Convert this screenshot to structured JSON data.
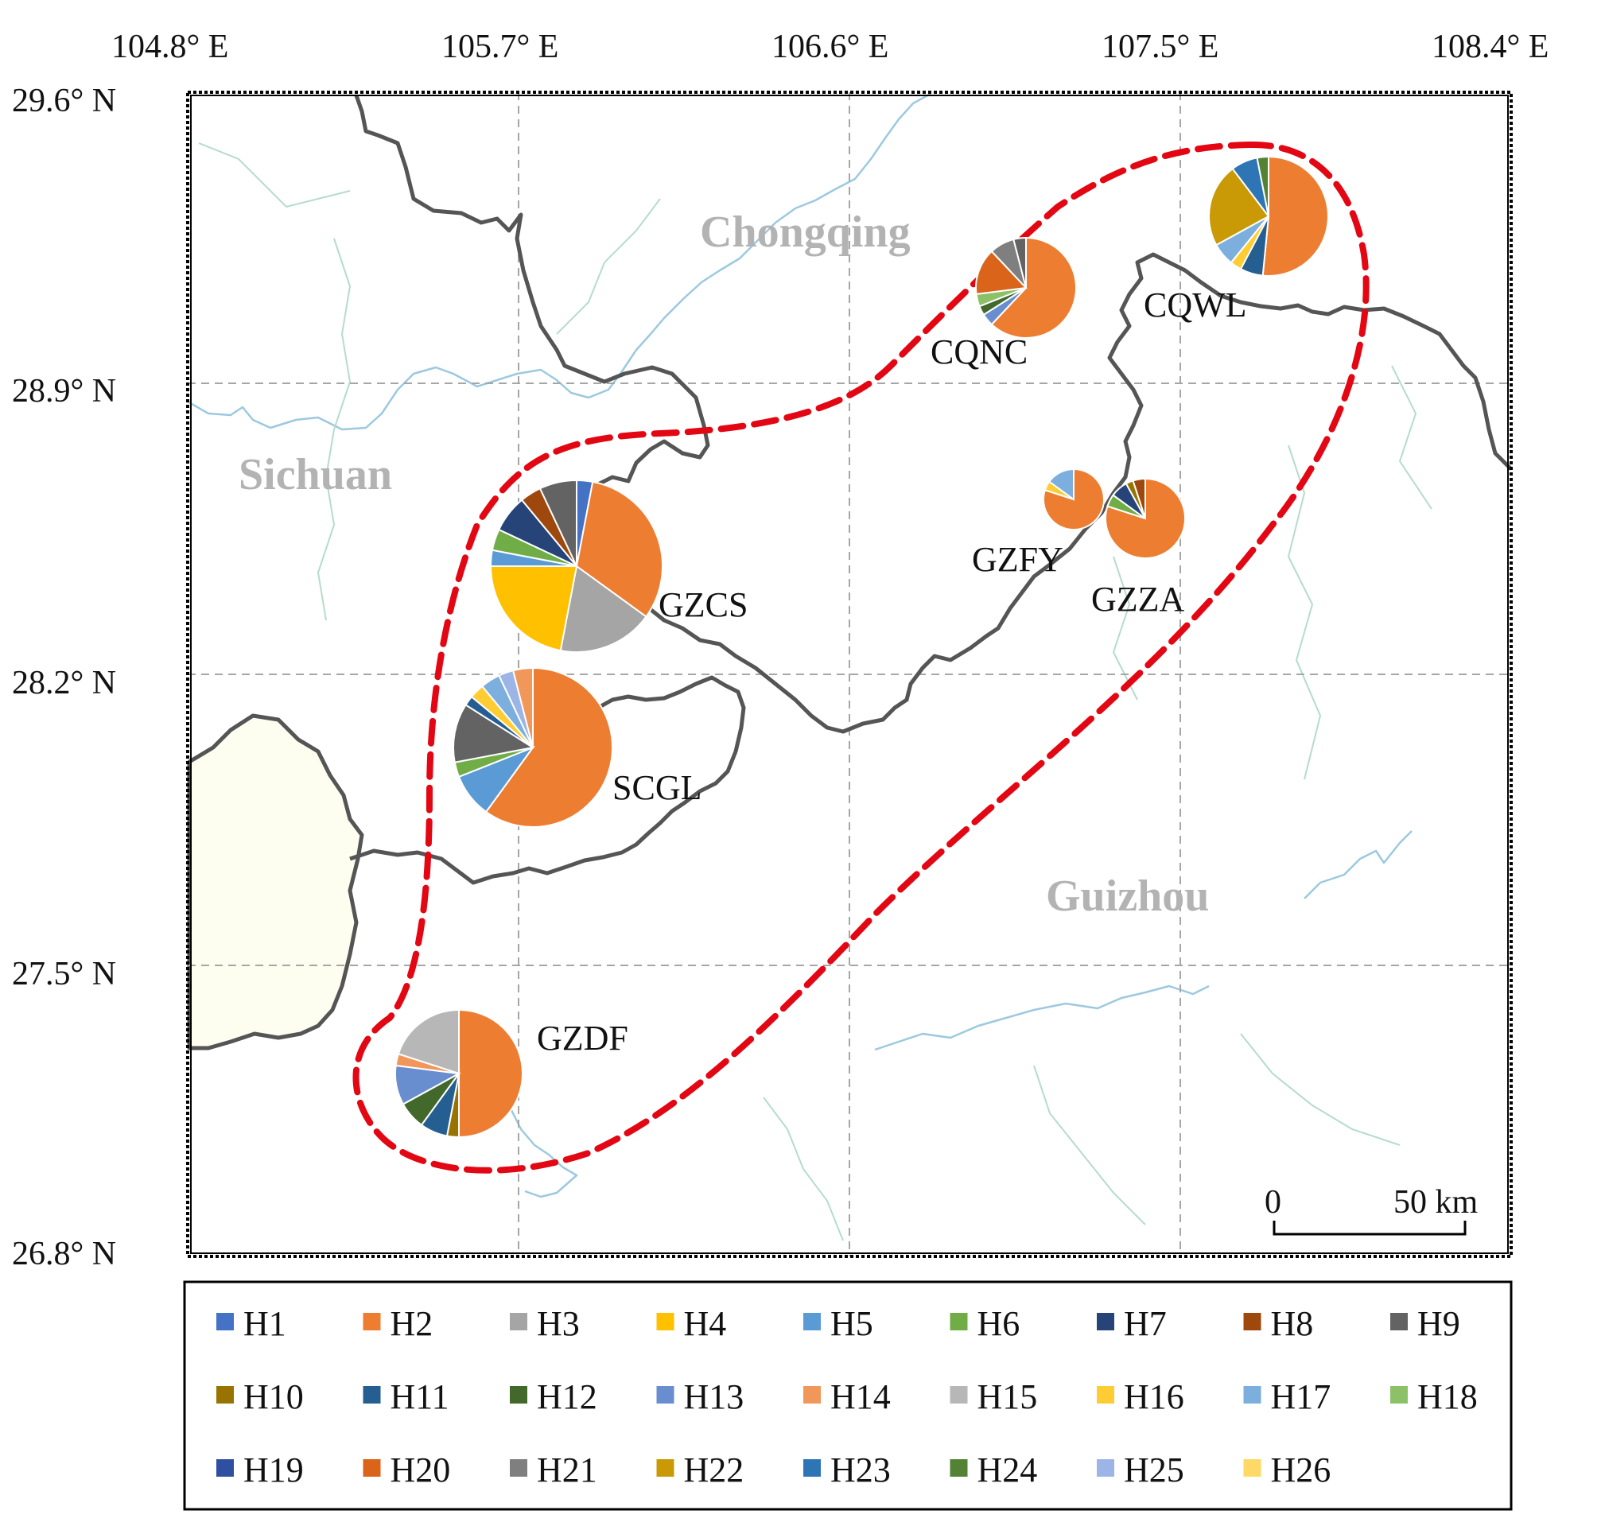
{
  "map": {
    "lon_ticks": [
      "104.8° E",
      "105.7° E",
      "106.6° E",
      "107.5° E",
      "108.4° E"
    ],
    "lat_ticks": [
      "29.6° N",
      "28.9° N",
      "28.2° N",
      "27.5° N",
      "26.8° N"
    ],
    "provinces": [
      {
        "id": "chongqing",
        "label": "Chongqing"
      },
      {
        "id": "sichuan",
        "label": "Sichuan"
      },
      {
        "id": "guizhou",
        "label": "Guizhou"
      }
    ],
    "scale_bar": {
      "zero": "0",
      "end": "50 km"
    },
    "colors": {
      "frame": "#000000",
      "grid": "#a6a6a6",
      "border": "#555555",
      "river": "#9cc9e0",
      "cluster_outline": "#e30613",
      "yunnan_fill": "#fdfdf0"
    }
  },
  "legend": {
    "items": [
      {
        "label": "H1",
        "color": "#4472C4"
      },
      {
        "label": "H2",
        "color": "#ED7D31"
      },
      {
        "label": "H3",
        "color": "#A5A5A5"
      },
      {
        "label": "H4",
        "color": "#FFC000"
      },
      {
        "label": "H5",
        "color": "#5B9BD5"
      },
      {
        "label": "H6",
        "color": "#70AD47"
      },
      {
        "label": "H7",
        "color": "#264478"
      },
      {
        "label": "H8",
        "color": "#9E480E"
      },
      {
        "label": "H9",
        "color": "#636363"
      },
      {
        "label": "H10",
        "color": "#997300"
      },
      {
        "label": "H11",
        "color": "#255E91"
      },
      {
        "label": "H12",
        "color": "#43682B"
      },
      {
        "label": "H13",
        "color": "#698ED0"
      },
      {
        "label": "H14",
        "color": "#F1975A"
      },
      {
        "label": "H15",
        "color": "#B7B7B7"
      },
      {
        "label": "H16",
        "color": "#FFCD33"
      },
      {
        "label": "H17",
        "color": "#7CAFDD"
      },
      {
        "label": "H18",
        "color": "#8CC168"
      },
      {
        "label": "H19",
        "color": "#2F4FA0"
      },
      {
        "label": "H20",
        "color": "#D9641A"
      },
      {
        "label": "H21",
        "color": "#7F7F7F"
      },
      {
        "label": "H22",
        "color": "#C99A06"
      },
      {
        "label": "H23",
        "color": "#2E75B6"
      },
      {
        "label": "H24",
        "color": "#548235"
      },
      {
        "label": "H25",
        "color": "#9DB5E6"
      },
      {
        "label": "H26",
        "color": "#FFD966"
      }
    ]
  },
  "sites": [
    {
      "name": "CQWL",
      "slices": [
        {
          "h": "H2",
          "v": 50
        },
        {
          "h": "H11",
          "v": 6
        },
        {
          "h": "H16",
          "v": 3
        },
        {
          "h": "H17",
          "v": 6
        },
        {
          "h": "H22",
          "v": 22
        },
        {
          "h": "H23",
          "v": 7
        },
        {
          "h": "H24",
          "v": 3
        }
      ]
    },
    {
      "name": "CQNC",
      "slices": [
        {
          "h": "H2",
          "v": 62
        },
        {
          "h": "H13",
          "v": 4
        },
        {
          "h": "H12",
          "v": 3
        },
        {
          "h": "H18",
          "v": 4
        },
        {
          "h": "H20",
          "v": 15
        },
        {
          "h": "H21",
          "v": 8
        },
        {
          "h": "H9",
          "v": 4
        }
      ]
    },
    {
      "name": "GZCS",
      "slices": [
        {
          "h": "H1",
          "v": 3
        },
        {
          "h": "H2",
          "v": 32
        },
        {
          "h": "H3",
          "v": 18
        },
        {
          "h": "H4",
          "v": 22
        },
        {
          "h": "H5",
          "v": 3
        },
        {
          "h": "H6",
          "v": 4
        },
        {
          "h": "H7",
          "v": 7
        },
        {
          "h": "H8",
          "v": 4
        },
        {
          "h": "H9",
          "v": 7
        }
      ]
    },
    {
      "name": "GZFY",
      "slices": [
        {
          "h": "H2",
          "v": 80
        },
        {
          "h": "H16",
          "v": 5
        },
        {
          "h": "H17",
          "v": 15
        }
      ]
    },
    {
      "name": "GZZA",
      "slices": [
        {
          "h": "H2",
          "v": 80
        },
        {
          "h": "H6",
          "v": 5
        },
        {
          "h": "H7",
          "v": 7
        },
        {
          "h": "H10",
          "v": 3
        },
        {
          "h": "H8",
          "v": 5
        }
      ]
    },
    {
      "name": "SCGL",
      "slices": [
        {
          "h": "H2",
          "v": 60
        },
        {
          "h": "H5",
          "v": 9
        },
        {
          "h": "H6",
          "v": 3
        },
        {
          "h": "H9",
          "v": 12
        },
        {
          "h": "H11",
          "v": 2
        },
        {
          "h": "H16",
          "v": 3
        },
        {
          "h": "H17",
          "v": 4
        },
        {
          "h": "H25",
          "v": 3
        },
        {
          "h": "H14",
          "v": 4
        }
      ]
    },
    {
      "name": "GZDF",
      "slices": [
        {
          "h": "H2",
          "v": 50
        },
        {
          "h": "H10",
          "v": 3
        },
        {
          "h": "H11",
          "v": 7
        },
        {
          "h": "H12",
          "v": 7
        },
        {
          "h": "H13",
          "v": 10
        },
        {
          "h": "H14",
          "v": 3
        },
        {
          "h": "H15",
          "v": 20
        }
      ]
    }
  ]
}
